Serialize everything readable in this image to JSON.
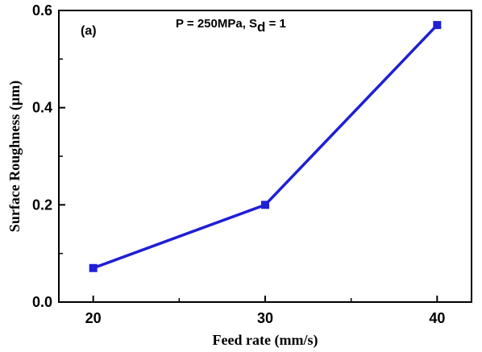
{
  "chart_data": {
    "type": "line",
    "panel_label": "(a)",
    "annotation": {
      "main": "P = 250MPa, S",
      "sub": "d",
      "tail": " = 1"
    },
    "xlabel": "Feed rate (mm/s)",
    "ylabel": "Surface Roughness (µm)",
    "xlim": [
      18,
      42
    ],
    "ylim": [
      0,
      0.6
    ],
    "x_ticks": [
      20,
      30,
      40
    ],
    "x_tick_labels": [
      "20",
      "30",
      "40"
    ],
    "x_minor_ticks": [
      25,
      35
    ],
    "y_ticks": [
      0.0,
      0.2,
      0.4,
      0.6
    ],
    "y_tick_labels": [
      "0.0",
      "0.2",
      "0.4",
      "0.6"
    ],
    "y_minor_ticks": [
      0.1,
      0.3,
      0.5
    ],
    "grid": false,
    "series": [
      {
        "color": "#1f1fd6",
        "marker": "square",
        "x": [
          20,
          30,
          40
        ],
        "y": [
          0.07,
          0.2,
          0.57
        ]
      }
    ]
  }
}
